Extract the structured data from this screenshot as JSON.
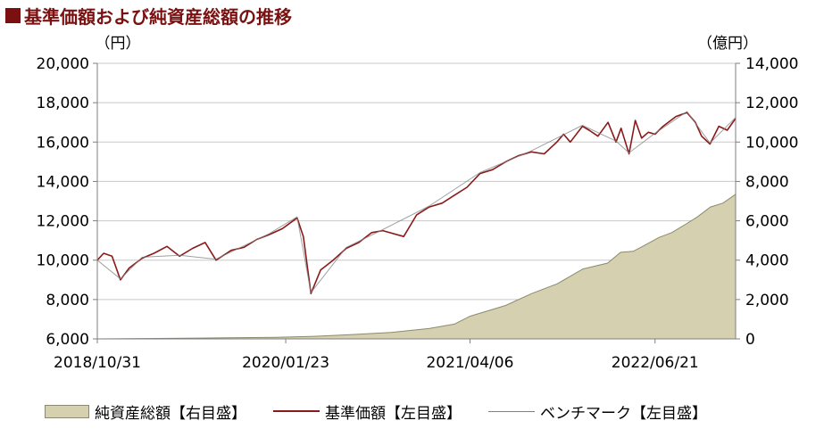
{
  "title": "基準価額および純資産総額の推移",
  "legend": {
    "net_assets": "純資産総額【右目盛】",
    "nav": "基準価額【左目盛】",
    "benchmark": "ベンチマーク【左目盛】"
  },
  "colors": {
    "title": "#7a1010",
    "nav_line": "#8a1a1a",
    "benchmark_line": "#808080",
    "area_fill": "#d4d0b0",
    "area_stroke": "#8c8a6e"
  },
  "chart_data": {
    "type": "line",
    "x_ticks": [
      "2018/10/31",
      "2020/01/23",
      "2021/04/06",
      "2022/06/21"
    ],
    "x_start": "2018/10/31",
    "x_end": "2022/12/30",
    "y_left": {
      "unit_label": "（円）",
      "ylim": [
        6000,
        20000
      ],
      "ticks": [
        "6,000",
        "8,000",
        "10,000",
        "12,000",
        "14,000",
        "16,000",
        "18,000",
        "20,000"
      ]
    },
    "y_right": {
      "unit_label": "（億円）",
      "ylim": [
        0,
        14000
      ],
      "ticks": [
        "0",
        "2,000",
        "4,000",
        "6,000",
        "8,000",
        "10,000",
        "12,000",
        "14,000"
      ]
    },
    "grid": true,
    "series": [
      {
        "name": "基準価額【左目盛】",
        "axis": "left",
        "type": "line",
        "points": [
          [
            "2018/10/31",
            10000
          ],
          [
            "2018/11/15",
            10350
          ],
          [
            "2018/12/05",
            10200
          ],
          [
            "2018/12/25",
            9000
          ],
          [
            "2019/01/15",
            9600
          ],
          [
            "2019/02/15",
            10100
          ],
          [
            "2019/03/15",
            10350
          ],
          [
            "2019/04/15",
            10700
          ],
          [
            "2019/05/15",
            10200
          ],
          [
            "2019/06/15",
            10600
          ],
          [
            "2019/07/15",
            10900
          ],
          [
            "2019/08/10",
            10000
          ],
          [
            "2019/09/15",
            10500
          ],
          [
            "2019/10/15",
            10650
          ],
          [
            "2019/11/15",
            11050
          ],
          [
            "2019/12/15",
            11300
          ],
          [
            "2020/01/15",
            11600
          ],
          [
            "2020/02/19",
            12150
          ],
          [
            "2020/03/05",
            11200
          ],
          [
            "2020/03/23",
            8300
          ],
          [
            "2020/04/15",
            9500
          ],
          [
            "2020/05/15",
            10000
          ],
          [
            "2020/06/15",
            10600
          ],
          [
            "2020/07/15",
            10900
          ],
          [
            "2020/08/15",
            11400
          ],
          [
            "2020/09/10",
            11500
          ],
          [
            "2020/10/30",
            11200
          ],
          [
            "2020/11/30",
            12300
          ],
          [
            "2020/12/30",
            12700
          ],
          [
            "2021/01/30",
            12900
          ],
          [
            "2021/02/28",
            13300
          ],
          [
            "2021/03/30",
            13700
          ],
          [
            "2021/04/30",
            14400
          ],
          [
            "2021/05/30",
            14600
          ],
          [
            "2021/06/30",
            15000
          ],
          [
            "2021/07/30",
            15300
          ],
          [
            "2021/08/30",
            15500
          ],
          [
            "2021/09/30",
            15400
          ],
          [
            "2021/10/30",
            16000
          ],
          [
            "2021/11/15",
            16400
          ],
          [
            "2021/12/01",
            16000
          ],
          [
            "2021/12/30",
            16800
          ],
          [
            "2022/01/15",
            16600
          ],
          [
            "2022/02/05",
            16300
          ],
          [
            "2022/03/01",
            17000
          ],
          [
            "2022/03/20",
            16000
          ],
          [
            "2022/04/01",
            16700
          ],
          [
            "2022/04/20",
            15400
          ],
          [
            "2022/05/05",
            17100
          ],
          [
            "2022/05/20",
            16200
          ],
          [
            "2022/06/05",
            16500
          ],
          [
            "2022/06/21",
            16400
          ],
          [
            "2022/07/10",
            16800
          ],
          [
            "2022/08/10",
            17300
          ],
          [
            "2022/09/05",
            17500
          ],
          [
            "2022/09/25",
            17000
          ],
          [
            "2022/10/10",
            16300
          ],
          [
            "2022/10/30",
            15900
          ],
          [
            "2022/11/20",
            16800
          ],
          [
            "2022/12/10",
            16600
          ],
          [
            "2022/12/30",
            17200
          ]
        ]
      },
      {
        "name": "ベンチマーク【左目盛】",
        "axis": "left",
        "type": "line",
        "points": [
          [
            "2018/10/31",
            10000
          ],
          [
            "2018/12/25",
            9050
          ],
          [
            "2019/02/15",
            10150
          ],
          [
            "2019/05/15",
            10250
          ],
          [
            "2019/08/10",
            10050
          ],
          [
            "2019/12/15",
            11350
          ],
          [
            "2020/02/19",
            12200
          ],
          [
            "2020/03/23",
            8350
          ],
          [
            "2020/06/15",
            10650
          ],
          [
            "2020/09/10",
            11550
          ],
          [
            "2020/12/30",
            12750
          ],
          [
            "2021/04/30",
            14450
          ],
          [
            "2021/08/30",
            15550
          ],
          [
            "2021/12/30",
            16850
          ],
          [
            "2022/03/20",
            16050
          ],
          [
            "2022/04/20",
            15450
          ],
          [
            "2022/06/21",
            16450
          ],
          [
            "2022/09/05",
            17550
          ],
          [
            "2022/10/30",
            15950
          ],
          [
            "2022/12/30",
            17250
          ]
        ]
      },
      {
        "name": "純資産総額【右目盛】",
        "axis": "right",
        "type": "area",
        "points": [
          [
            "2018/10/31",
            0
          ],
          [
            "2019/06/30",
            40
          ],
          [
            "2019/12/31",
            80
          ],
          [
            "2020/03/31",
            130
          ],
          [
            "2020/06/30",
            220
          ],
          [
            "2020/09/30",
            330
          ],
          [
            "2020/12/31",
            530
          ],
          [
            "2021/02/28",
            750
          ],
          [
            "2021/04/06",
            1150
          ],
          [
            "2021/06/30",
            1700
          ],
          [
            "2021/08/31",
            2300
          ],
          [
            "2021/10/31",
            2800
          ],
          [
            "2021/12/31",
            3550
          ],
          [
            "2022/02/28",
            3850
          ],
          [
            "2022/03/31",
            4400
          ],
          [
            "2022/04/30",
            4450
          ],
          [
            "2022/05/31",
            4800
          ],
          [
            "2022/06/30",
            5150
          ],
          [
            "2022/07/31",
            5400
          ],
          [
            "2022/08/31",
            5800
          ],
          [
            "2022/09/30",
            6200
          ],
          [
            "2022/10/31",
            6700
          ],
          [
            "2022/11/30",
            6900
          ],
          [
            "2022/12/30",
            7350
          ]
        ]
      }
    ]
  }
}
